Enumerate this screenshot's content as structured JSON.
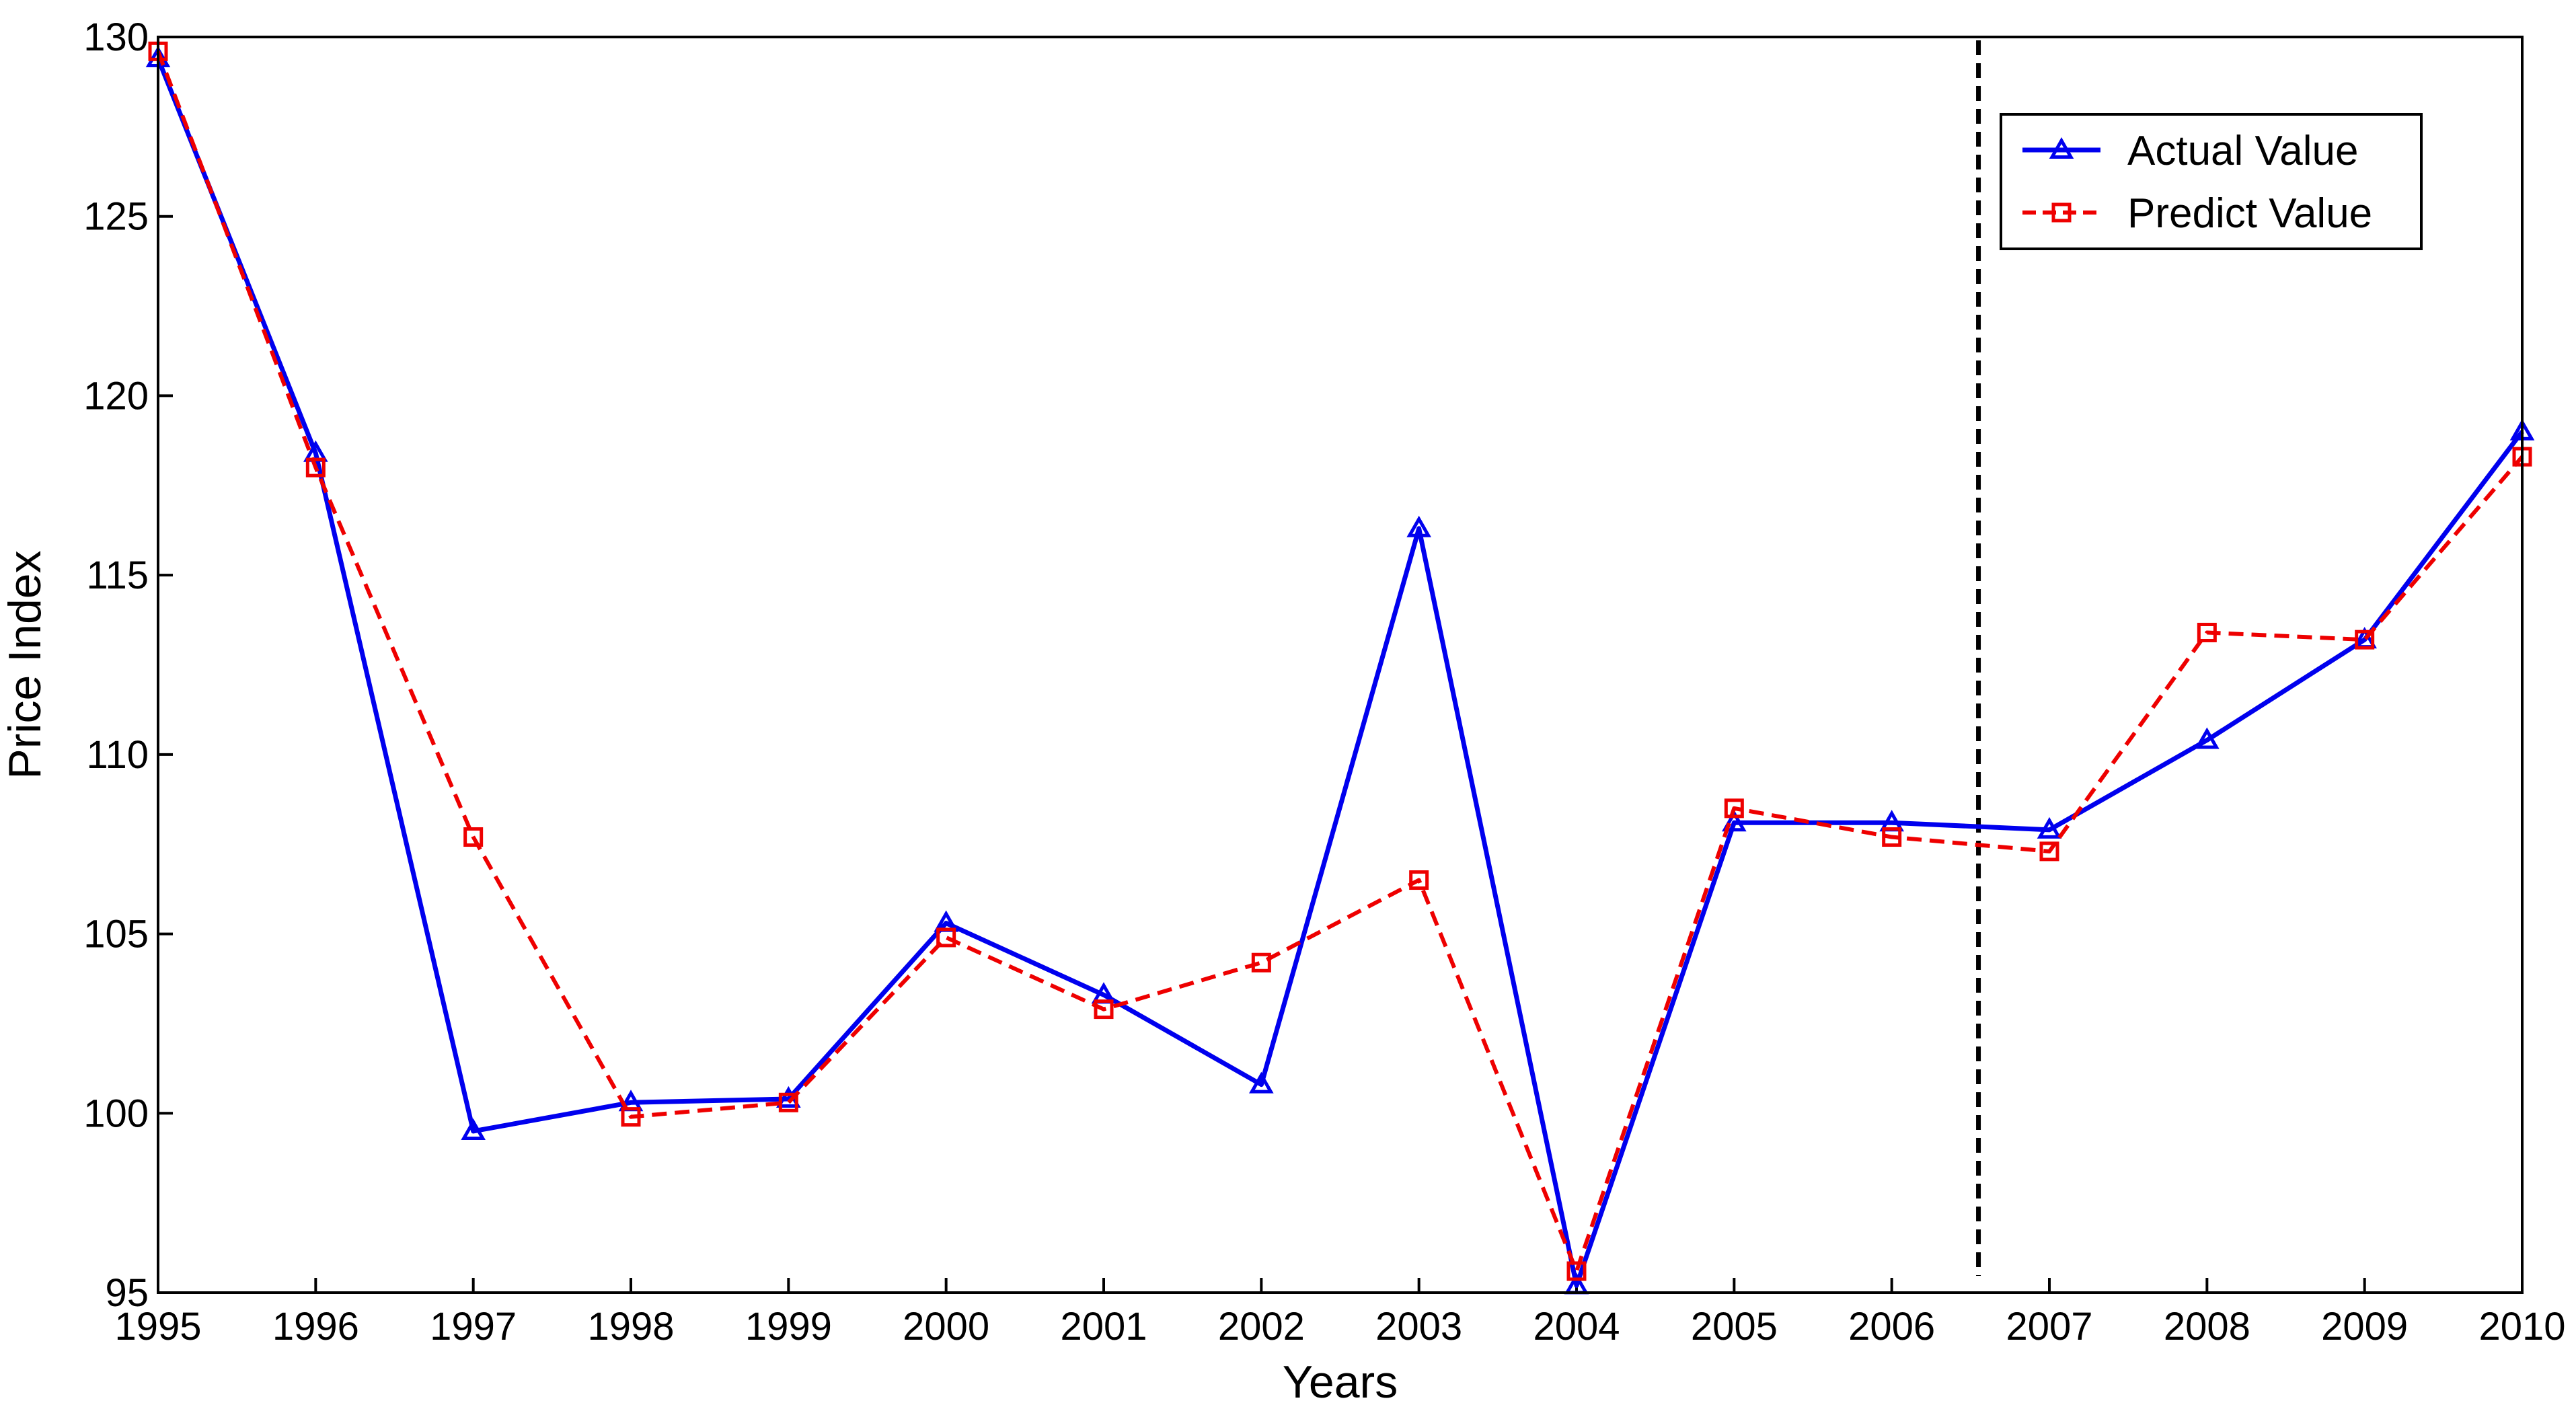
{
  "chart_data": {
    "type": "line",
    "x": [
      1995,
      1996,
      1997,
      1998,
      1999,
      2000,
      2001,
      2002,
      2003,
      2004,
      2005,
      2006,
      2007,
      2008,
      2009,
      2010
    ],
    "x_tick_labels": [
      "1995",
      "1996",
      "1997",
      "1998",
      "1999",
      "2000",
      "2001",
      "2002",
      "2003",
      "2004",
      "2005",
      "2006",
      "2007",
      "2008",
      "2009",
      "2010"
    ],
    "y_tick_labels": [
      "95",
      "100",
      "105",
      "110",
      "115",
      "120",
      "125",
      "130"
    ],
    "xlabel": "Years",
    "ylabel": "Price Index",
    "xlim": [
      1995,
      2010
    ],
    "ylim": [
      95,
      130
    ],
    "grid": false,
    "legend_position": "top-right",
    "divider_x": 2006.55,
    "series": [
      {
        "name": "Actual Value",
        "color": "#0000ee",
        "line_style": "solid",
        "marker": "triangle",
        "values": [
          129.4,
          118.4,
          99.5,
          100.3,
          100.4,
          105.3,
          103.3,
          100.8,
          116.3,
          95.2,
          108.1,
          108.1,
          107.9,
          110.4,
          113.2,
          119.0
        ]
      },
      {
        "name": "Predict Value",
        "color": "#ee0000",
        "line_style": "dashed",
        "marker": "square",
        "values": [
          129.6,
          118.0,
          107.7,
          99.9,
          100.3,
          104.9,
          102.9,
          104.2,
          106.5,
          95.6,
          108.5,
          107.7,
          107.3,
          113.4,
          113.2,
          118.3
        ]
      }
    ]
  }
}
